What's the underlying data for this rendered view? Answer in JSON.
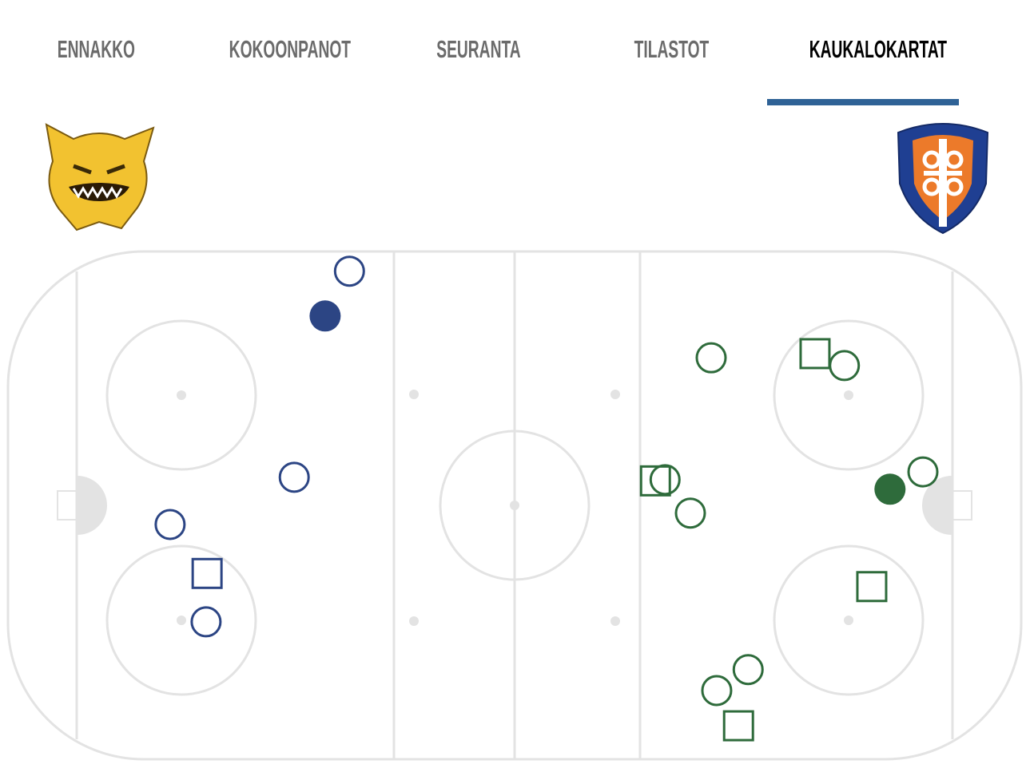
{
  "tabs": [
    {
      "label": "ENNAKKO",
      "active": false
    },
    {
      "label": "KOKOONPANOT",
      "active": false
    },
    {
      "label": "SEURANTA",
      "active": false
    },
    {
      "label": "TILASTOT",
      "active": false
    },
    {
      "label": "KAUKALOKARTAT",
      "active": true
    }
  ],
  "colors": {
    "accent": "#2f6296",
    "home": "#2c4584",
    "away": "#2e6b3b",
    "rink_lines": "#e3e3e3"
  },
  "teams": {
    "home": {
      "logo_icon": "lynx-logo-icon",
      "color": "#2c4584"
    },
    "away": {
      "logo_icon": "shield-logo-icon",
      "color": "#2e6b3b"
    }
  },
  "chart_data": {
    "type": "scatter",
    "units": "feet from center ice",
    "xlim": [
      -100,
      100
    ],
    "ylim": [
      -42.5,
      42.5
    ],
    "series": [
      {
        "team": "home",
        "color": "#2c4584",
        "points": [
          {
            "x": -32.6,
            "y": 39.2,
            "marker": "circle-open"
          },
          {
            "x": -37.4,
            "y": 31.7,
            "marker": "circle-filled"
          },
          {
            "x": -43.5,
            "y": 4.7,
            "marker": "circle-open"
          },
          {
            "x": -68.0,
            "y": -3.2,
            "marker": "circle-open"
          },
          {
            "x": -60.7,
            "y": -11.4,
            "marker": "square-open"
          },
          {
            "x": -60.9,
            "y": -19.5,
            "marker": "circle-open"
          }
        ]
      },
      {
        "team": "away",
        "color": "#2e6b3b",
        "points": [
          {
            "x": 38.8,
            "y": 24.7,
            "marker": "circle-open"
          },
          {
            "x": 59.3,
            "y": 25.4,
            "marker": "square-open"
          },
          {
            "x": 65.1,
            "y": 23.4,
            "marker": "circle-open"
          },
          {
            "x": 27.8,
            "y": 4.1,
            "marker": "square-open"
          },
          {
            "x": 29.7,
            "y": 4.3,
            "marker": "circle-open"
          },
          {
            "x": 34.7,
            "y": -1.3,
            "marker": "circle-open"
          },
          {
            "x": 80.6,
            "y": 5.6,
            "marker": "circle-open"
          },
          {
            "x": 74.1,
            "y": 2.7,
            "marker": "circle-filled"
          },
          {
            "x": 70.5,
            "y": -13.6,
            "marker": "square-open"
          },
          {
            "x": 46.1,
            "y": -27.5,
            "marker": "circle-open"
          },
          {
            "x": 39.9,
            "y": -31.0,
            "marker": "circle-open"
          },
          {
            "x": 44.2,
            "y": -36.9,
            "marker": "square-open"
          }
        ]
      }
    ]
  }
}
